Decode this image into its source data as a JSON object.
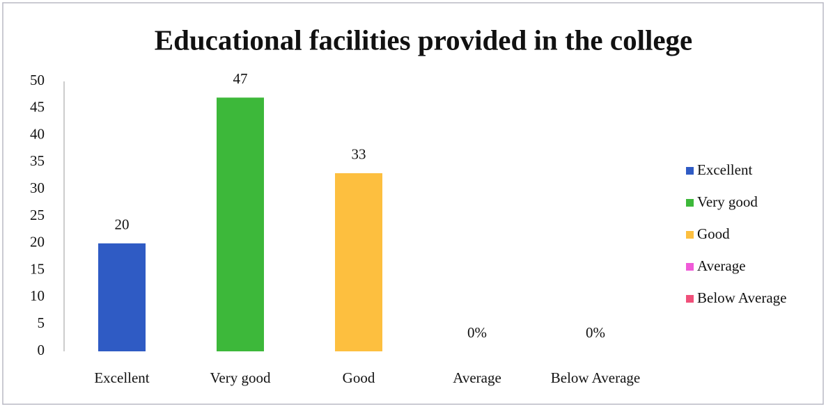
{
  "chart_data": {
    "type": "bar",
    "title": "Educational facilities provided in the college",
    "categories": [
      "Excellent",
      "Very good",
      "Good",
      "Average",
      "Below Average"
    ],
    "values": [
      20,
      47,
      33,
      0,
      0
    ],
    "value_labels": [
      "20",
      "47",
      "33",
      "0%",
      "0%"
    ],
    "colors": [
      "#2f5bc4",
      "#3db83a",
      "#fdbf3f",
      "#f05ad8",
      "#f0507a"
    ],
    "ylim": [
      0,
      50
    ],
    "yticks": [
      0,
      5,
      10,
      15,
      20,
      25,
      30,
      35,
      40,
      45,
      50
    ],
    "grid": false,
    "legend": "right"
  }
}
